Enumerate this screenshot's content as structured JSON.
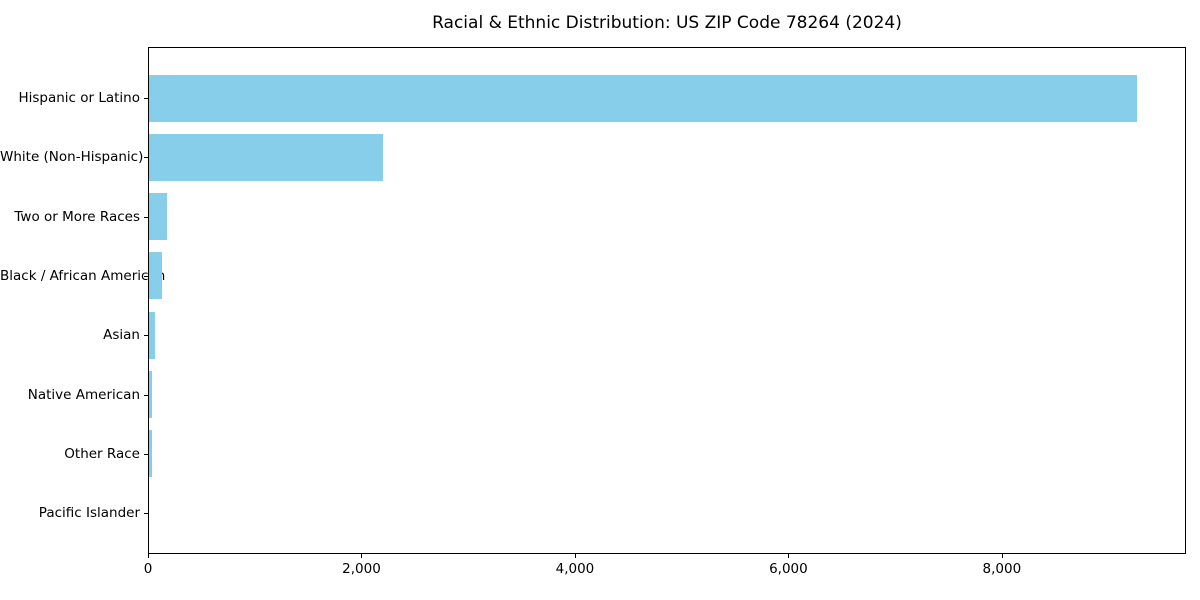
{
  "chart_data": {
    "type": "bar",
    "orientation": "horizontal",
    "title": "Racial & Ethnic Distribution: US ZIP Code 78264 (2024)",
    "categories": [
      "Hispanic or Latino",
      "White (Non-Hispanic)",
      "Two or More Races",
      "Black / African American",
      "Asian",
      "Native American",
      "Other Race",
      "Pacific Islander"
    ],
    "values": [
      9260,
      2190,
      170,
      120,
      60,
      25,
      30,
      0
    ],
    "xlabel": "",
    "ylabel": "",
    "xlim": [
      0,
      9725
    ],
    "xticks": [
      0,
      2000,
      4000,
      6000,
      8000
    ],
    "xtick_labels": [
      "0",
      "2,000",
      "4,000",
      "6,000",
      "8,000"
    ],
    "bar_color": "#87ceeb",
    "axis_color": "#000000",
    "grid": false,
    "legend": false
  }
}
